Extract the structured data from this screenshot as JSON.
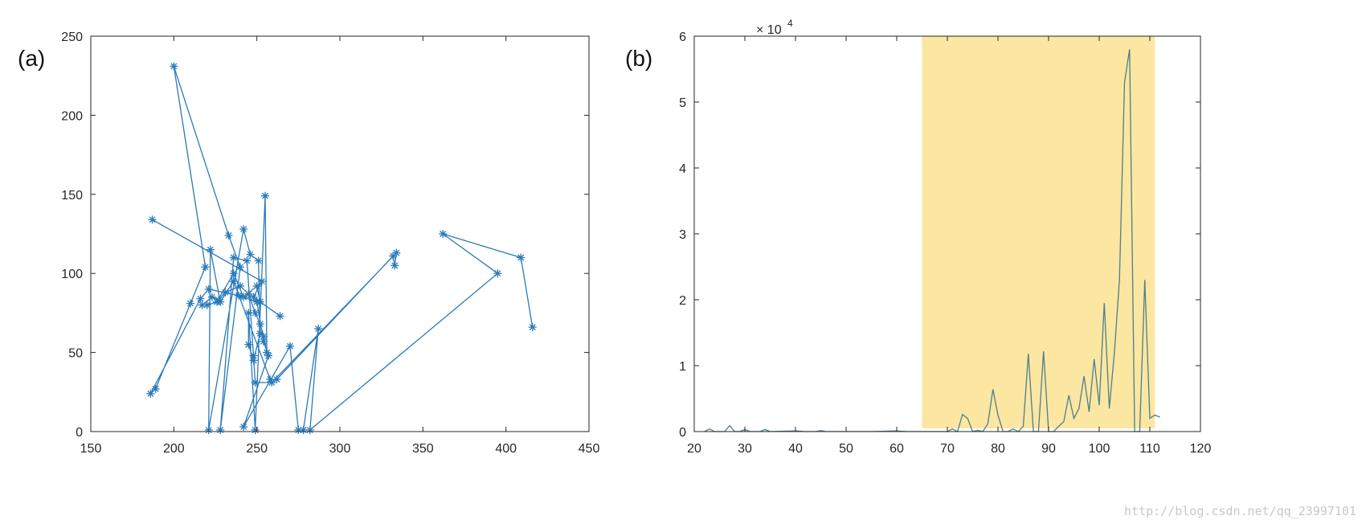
{
  "watermark": "http://blog.csdn.net/qq_23997101",
  "colors": {
    "line": "#2a7ab9",
    "highlight": "#fbe6a2",
    "line_b": "#4d7f8a",
    "axis": "#262626"
  },
  "chart_data": [
    {
      "panel_label": "(a)",
      "type": "line",
      "marker": "asterisk",
      "title": "",
      "xlabel": "",
      "ylabel": "",
      "xlim": [
        150,
        450
      ],
      "ylim": [
        0,
        250
      ],
      "xticks": [
        150,
        200,
        250,
        300,
        350,
        400,
        450
      ],
      "yticks": [
        0,
        50,
        100,
        150,
        200,
        250
      ],
      "grid": false,
      "points": [
        [
          187,
          134
        ],
        [
          253,
          95
        ],
        [
          248,
          85
        ],
        [
          264,
          73
        ],
        [
          252,
          82
        ],
        [
          250,
          92
        ],
        [
          242,
          85
        ],
        [
          236,
          100
        ],
        [
          226,
          82
        ],
        [
          220,
          80
        ],
        [
          217,
          80
        ],
        [
          223,
          85
        ],
        [
          227,
          83
        ],
        [
          231,
          88
        ],
        [
          240,
          92
        ],
        [
          245,
          87
        ],
        [
          249,
          75
        ],
        [
          252,
          68
        ],
        [
          254,
          60
        ],
        [
          256,
          50
        ],
        [
          255,
          149
        ],
        [
          249,
          1
        ],
        [
          245,
          75
        ],
        [
          245,
          55
        ],
        [
          248,
          45
        ],
        [
          252,
          62
        ],
        [
          251,
          108
        ],
        [
          246,
          112
        ],
        [
          242,
          128
        ],
        [
          221,
          1
        ],
        [
          222,
          115
        ],
        [
          228,
          82
        ],
        [
          236,
          95
        ],
        [
          258,
          33
        ],
        [
          262,
          33
        ],
        [
          332,
          111
        ],
        [
          333,
          105
        ],
        [
          334,
          113
        ],
        [
          259,
          31
        ],
        [
          249,
          31
        ],
        [
          248,
          48
        ],
        [
          244,
          108
        ],
        [
          236,
          110
        ],
        [
          228,
          1
        ],
        [
          240,
          104
        ],
        [
          233,
          124
        ],
        [
          200,
          231
        ],
        [
          219,
          104
        ],
        [
          210,
          81
        ],
        [
          189,
          27
        ],
        [
          186,
          24
        ],
        [
          216,
          84
        ],
        [
          221,
          90
        ],
        [
          239,
          86
        ],
        [
          250,
          82
        ],
        [
          254,
          57
        ],
        [
          257,
          48
        ],
        [
          242,
          3
        ],
        [
          270,
          54
        ],
        [
          275,
          1
        ],
        [
          278,
          1
        ],
        [
          287,
          65
        ],
        [
          282,
          1
        ],
        [
          395,
          100
        ],
        [
          362,
          125
        ],
        [
          409,
          110
        ],
        [
          416,
          66
        ]
      ]
    },
    {
      "panel_label": "(b)",
      "type": "line",
      "title": "",
      "xlabel": "",
      "ylabel": "",
      "xlim": [
        20,
        120
      ],
      "ylim": [
        0,
        60000
      ],
      "xticks": [
        20,
        30,
        40,
        50,
        60,
        70,
        80,
        90,
        100,
        110,
        120
      ],
      "yticks": [
        0,
        10000,
        20000,
        30000,
        40000,
        50000,
        60000
      ],
      "ytick_labels": [
        "0",
        "1",
        "2",
        "3",
        "4",
        "5",
        "6"
      ],
      "exponent_prefix": "× 10",
      "exponent_power": "4",
      "grid": false,
      "highlight_region": {
        "x": [
          65,
          111
        ],
        "color": "#fbe6a2"
      },
      "points": [
        [
          22,
          0
        ],
        [
          23,
          400
        ],
        [
          24,
          0
        ],
        [
          26,
          0
        ],
        [
          27,
          900
        ],
        [
          28,
          0
        ],
        [
          29,
          0
        ],
        [
          30,
          300
        ],
        [
          31,
          0
        ],
        [
          33,
          0
        ],
        [
          34,
          300
        ],
        [
          35,
          0
        ],
        [
          40,
          100
        ],
        [
          42,
          0
        ],
        [
          44,
          0
        ],
        [
          45,
          150
        ],
        [
          46,
          0
        ],
        [
          50,
          0
        ],
        [
          55,
          0
        ],
        [
          60,
          100
        ],
        [
          62,
          0
        ],
        [
          63,
          0
        ],
        [
          68,
          0
        ],
        [
          70,
          0
        ],
        [
          71,
          400
        ],
        [
          72,
          0
        ],
        [
          73,
          2600
        ],
        [
          74,
          2000
        ],
        [
          75,
          0
        ],
        [
          76,
          200
        ],
        [
          77,
          0
        ],
        [
          78,
          1200
        ],
        [
          79,
          6400
        ],
        [
          80,
          2500
        ],
        [
          81,
          0
        ],
        [
          82,
          0
        ],
        [
          83,
          400
        ],
        [
          84,
          0
        ],
        [
          85,
          800
        ],
        [
          86,
          11800
        ],
        [
          87,
          0
        ],
        [
          88,
          0
        ],
        [
          89,
          12200
        ],
        [
          90,
          0
        ],
        [
          91,
          0
        ],
        [
          92,
          800
        ],
        [
          93,
          1500
        ],
        [
          94,
          5500
        ],
        [
          95,
          2000
        ],
        [
          96,
          3500
        ],
        [
          97,
          8400
        ],
        [
          98,
          3000
        ],
        [
          99,
          11000
        ],
        [
          100,
          4000
        ],
        [
          101,
          19500
        ],
        [
          102,
          3500
        ],
        [
          103,
          12000
        ],
        [
          104,
          23000
        ],
        [
          105,
          53000
        ],
        [
          106,
          58000
        ],
        [
          107,
          0
        ],
        [
          108,
          0
        ],
        [
          109,
          23000
        ],
        [
          110,
          2000
        ],
        [
          111,
          2500
        ],
        [
          112,
          2200
        ]
      ]
    }
  ]
}
